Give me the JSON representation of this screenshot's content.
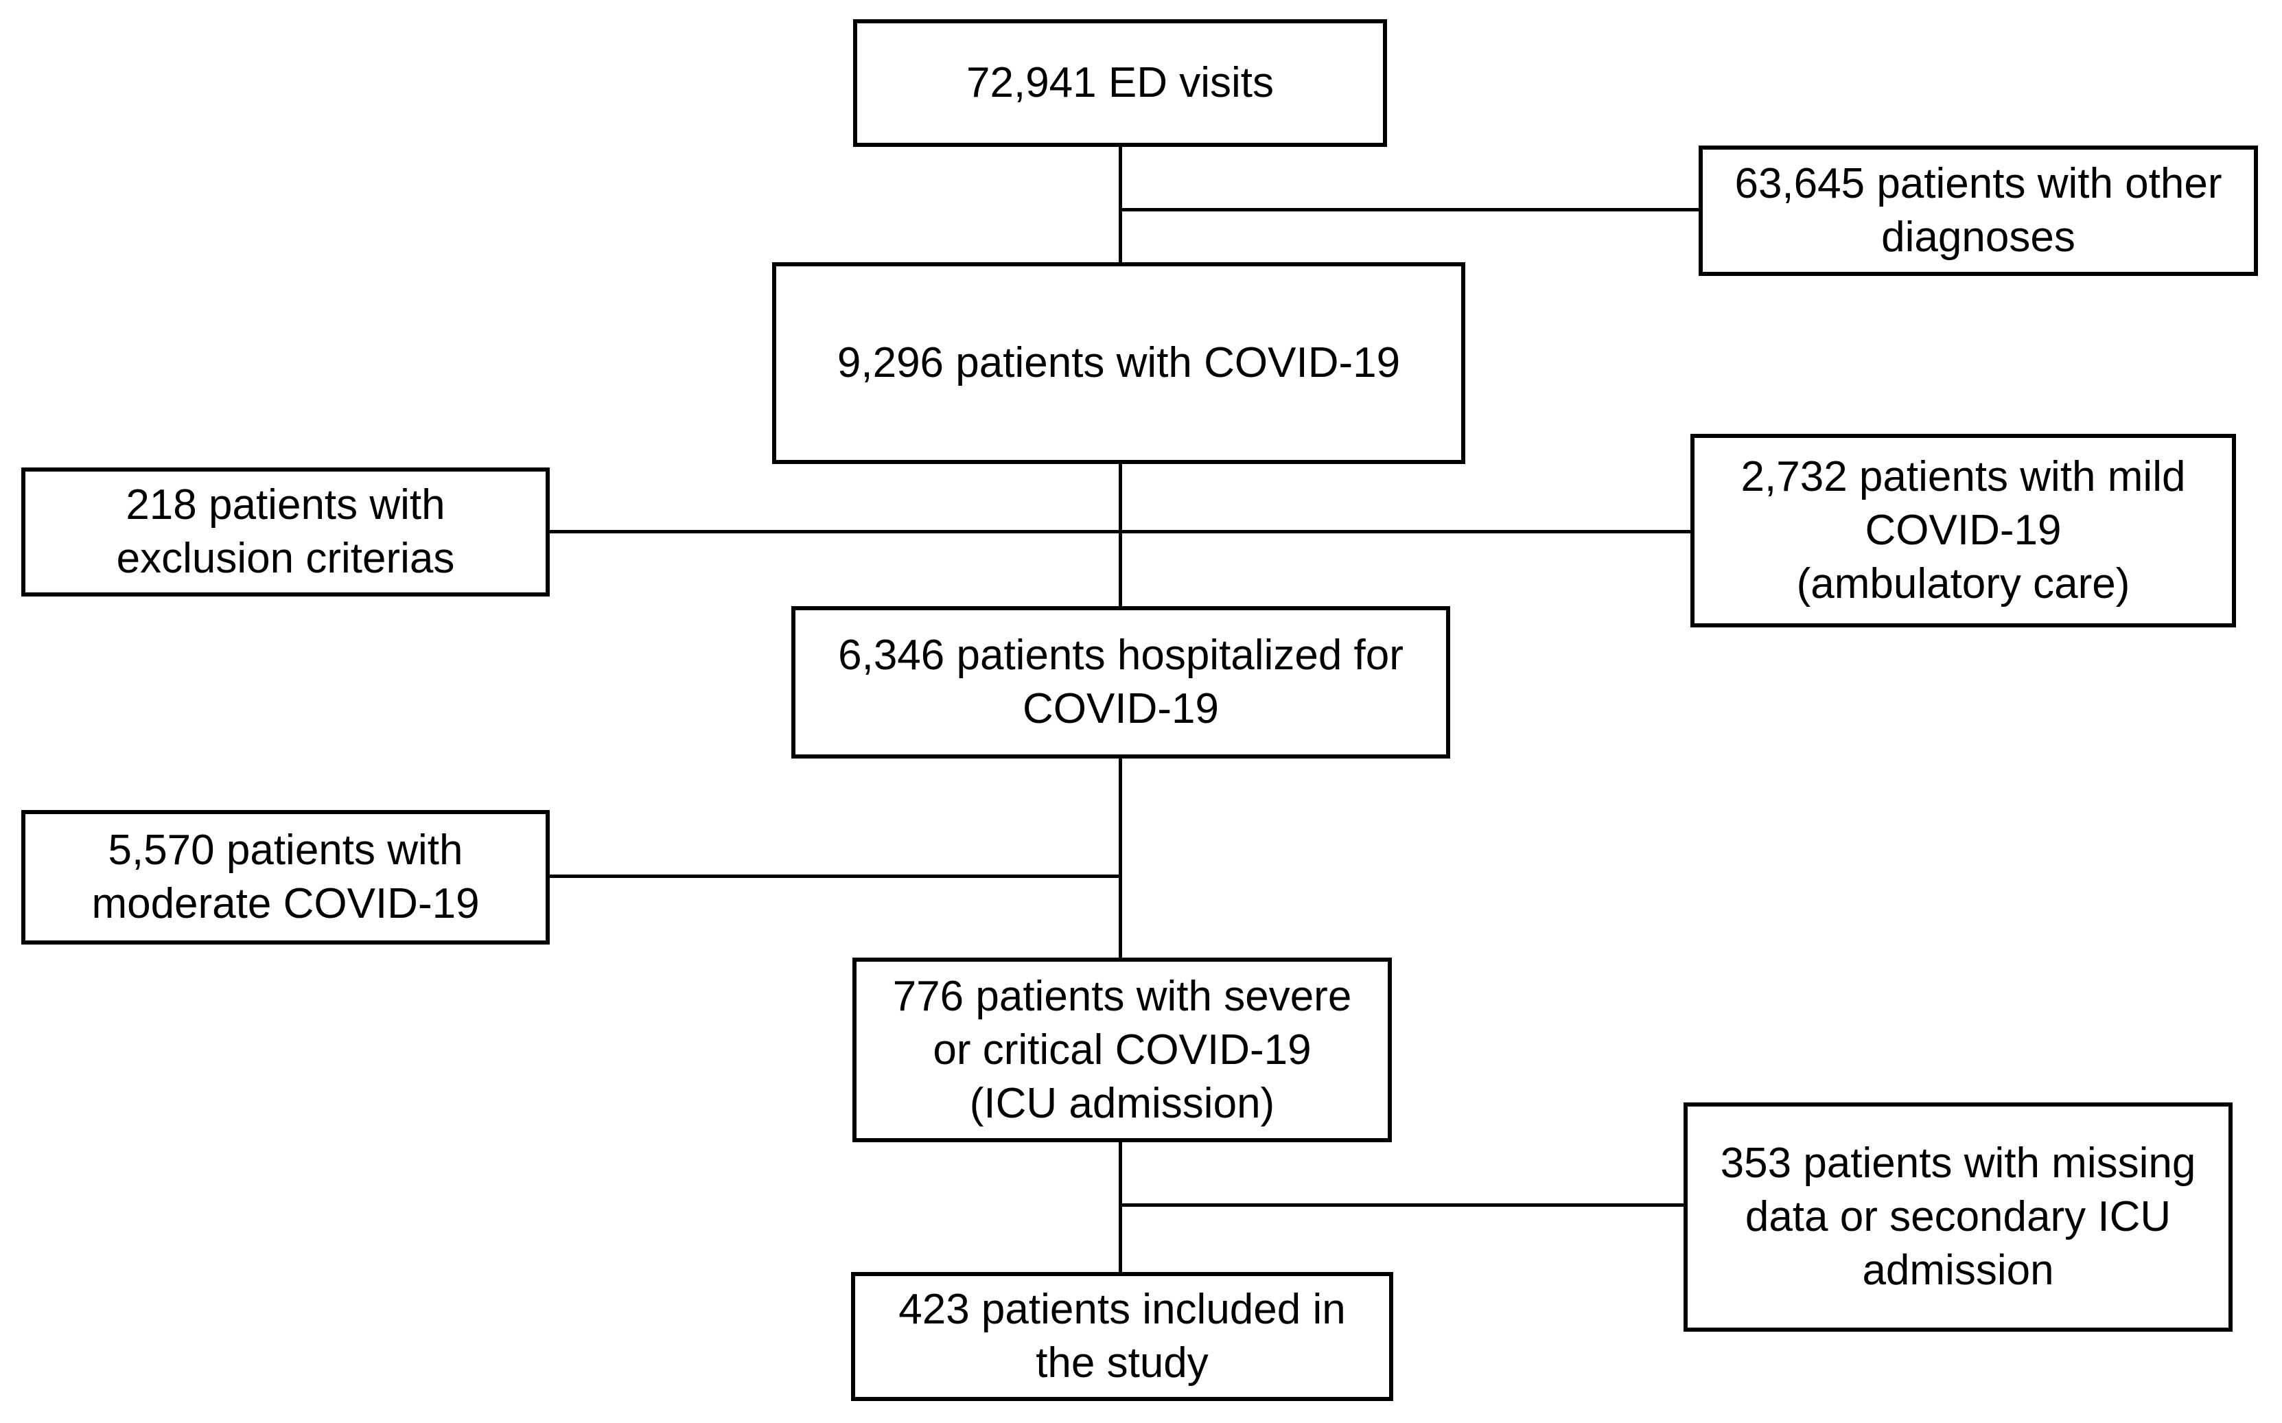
{
  "diagram": {
    "type": "flowchart",
    "colors": {
      "background": "#ffffff",
      "box_fill": "#ffffff",
      "box_border": "#000000",
      "text": "#000000",
      "connector": "#000000"
    },
    "nodes": {
      "ed_visits": "72,941 ED visits",
      "other_diagnoses": "63,645 patients with other\ndiagnoses",
      "covid19": "9,296 patients with COVID-19",
      "exclusion": "218 patients with\nexclusion criterias",
      "mild": "2,732 patients with mild\nCOVID-19\n(ambulatory care)",
      "hospitalized": "6,346 patients hospitalized for\nCOVID-19",
      "moderate": "5,570 patients with\nmoderate COVID-19",
      "severe_icu": "776 patients with severe\nor critical COVID-19\n(ICU admission)",
      "missing": "353 patients with missing\ndata or secondary ICU\nadmission",
      "included": "423 patients included in\nthe study"
    },
    "counts": {
      "ed_visits": 72941,
      "other_diagnoses": 63645,
      "covid19": 9296,
      "exclusion": 218,
      "mild": 2732,
      "hospitalized": 6346,
      "moderate": 5570,
      "severe_icu": 776,
      "missing": 353,
      "included": 423
    },
    "edges": [
      {
        "from": "ed_visits",
        "to": "covid19",
        "type": "main"
      },
      {
        "from": "ed_visits",
        "to": "other_diagnoses",
        "type": "excluded-right"
      },
      {
        "from": "covid19",
        "to": "hospitalized",
        "type": "main"
      },
      {
        "from": "covid19",
        "to": "exclusion",
        "type": "excluded-left"
      },
      {
        "from": "covid19",
        "to": "mild",
        "type": "excluded-right"
      },
      {
        "from": "hospitalized",
        "to": "severe_icu",
        "type": "main"
      },
      {
        "from": "hospitalized",
        "to": "moderate",
        "type": "excluded-left"
      },
      {
        "from": "severe_icu",
        "to": "included",
        "type": "main"
      },
      {
        "from": "severe_icu",
        "to": "missing",
        "type": "excluded-right"
      }
    ]
  }
}
